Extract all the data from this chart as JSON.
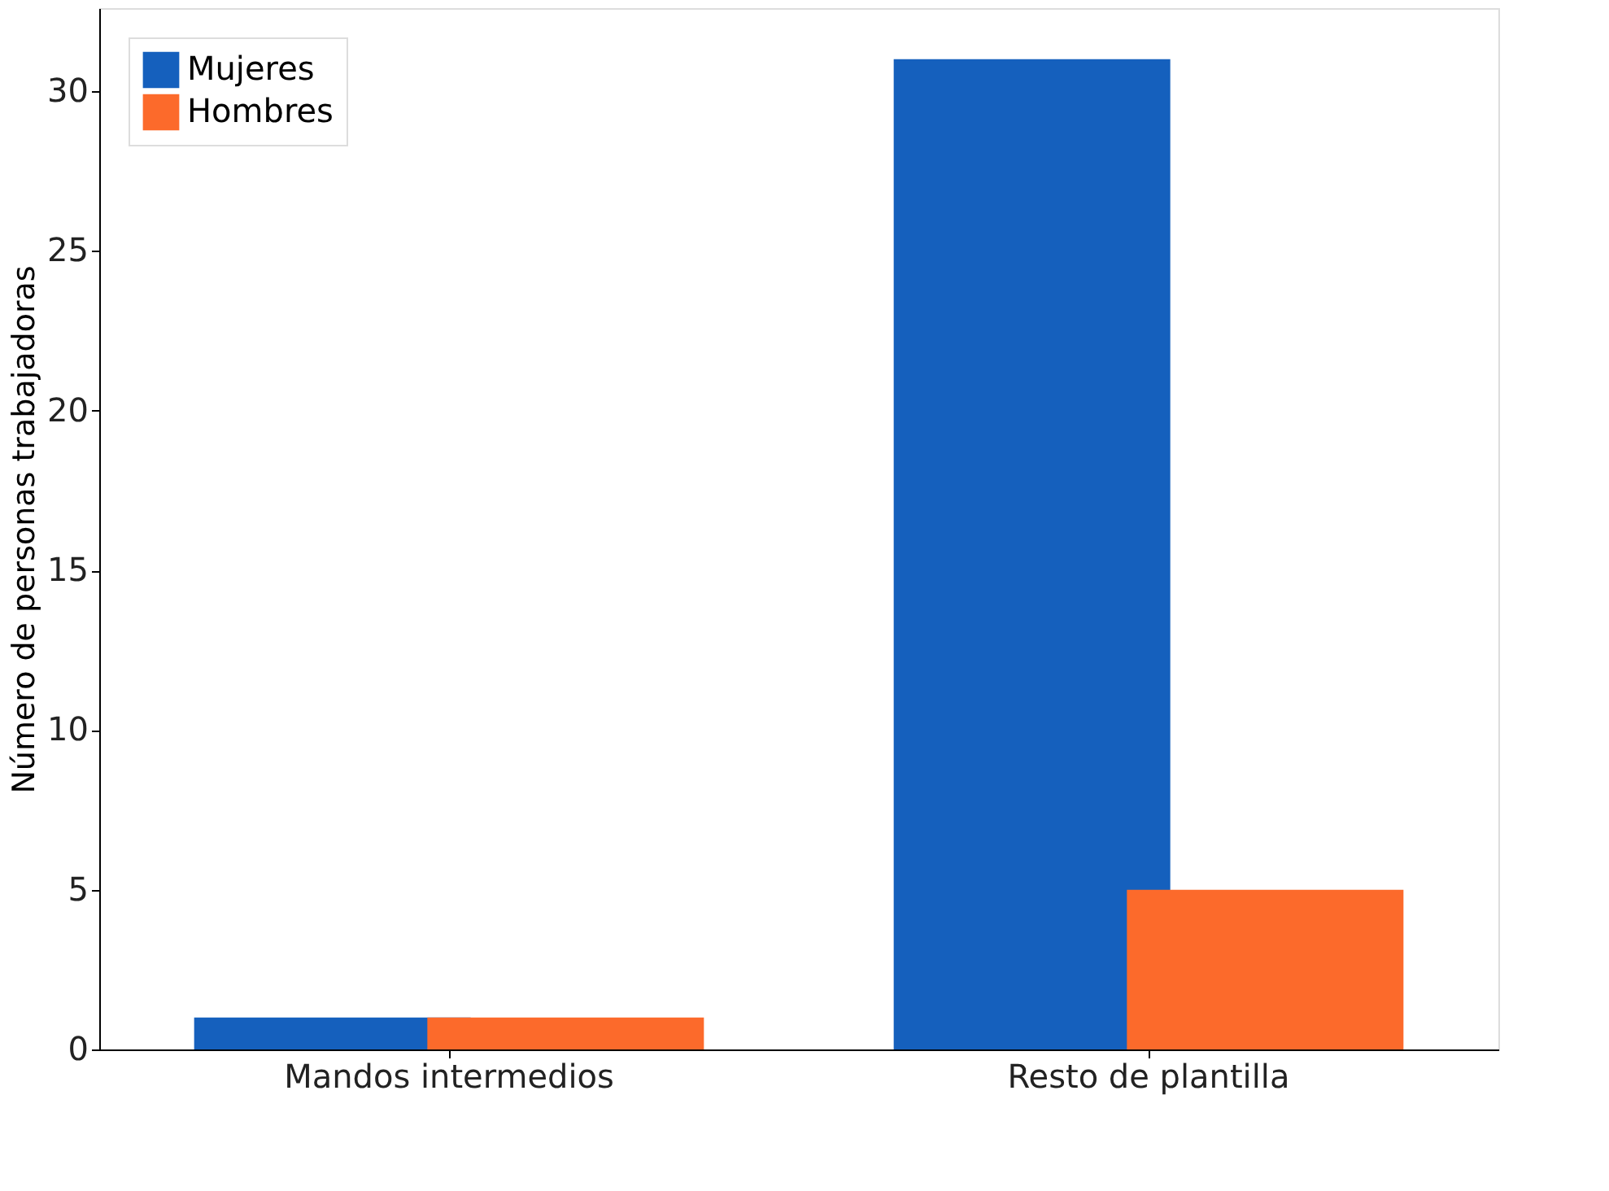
{
  "chart_data": {
    "type": "bar",
    "ylabel": "Número de personas trabajadoras",
    "categories": [
      "Mandos intermedios",
      "Resto de plantilla"
    ],
    "series": [
      {
        "name": "Mujeres",
        "color": "#1560bd",
        "values": [
          1,
          31
        ]
      },
      {
        "name": "Hombres",
        "color": "#fc6a2b",
        "values": [
          1,
          5
        ]
      }
    ],
    "ylim": [
      0,
      32.6
    ],
    "yticks": [
      0,
      5,
      10,
      15,
      20,
      25,
      30
    ],
    "grid": false,
    "legend": "top left"
  }
}
